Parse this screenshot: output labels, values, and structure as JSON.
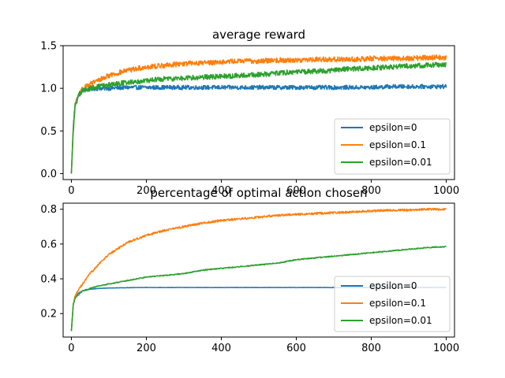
{
  "chart_data": [
    {
      "type": "line",
      "title": "average reward",
      "xlabel": "",
      "ylabel": "",
      "xlim": [
        -22,
        1022
      ],
      "ylim": [
        -0.07,
        1.5
      ],
      "xticks": [
        0,
        200,
        400,
        600,
        800,
        1000
      ],
      "xtick_labels": [
        "0",
        "200",
        "400",
        "600",
        "800",
        "1000"
      ],
      "yticks": [
        0.0,
        0.5,
        1.0,
        1.5
      ],
      "ytick_labels": [
        "0.0",
        "0.5",
        "1.0",
        "1.5"
      ],
      "grid": false,
      "legend_position": "lower right",
      "x": [
        0,
        5,
        10,
        20,
        30,
        50,
        75,
        100,
        150,
        200,
        250,
        300,
        350,
        400,
        450,
        500,
        550,
        600,
        650,
        700,
        750,
        800,
        850,
        900,
        950,
        1000
      ],
      "series": [
        {
          "name": "epsilon=0",
          "color": "#1f77b4",
          "noise": 0.025,
          "values": [
            0.0,
            0.55,
            0.82,
            0.93,
            0.97,
            0.99,
            1.0,
            1.0,
            1.01,
            1.01,
            1.01,
            1.01,
            1.01,
            1.01,
            1.01,
            1.01,
            1.01,
            1.01,
            1.01,
            1.01,
            1.01,
            1.01,
            1.02,
            1.02,
            1.02,
            1.02
          ]
        },
        {
          "name": "epsilon=0.1",
          "color": "#ff7f0e",
          "noise": 0.03,
          "values": [
            0.0,
            0.5,
            0.8,
            0.93,
            0.99,
            1.05,
            1.1,
            1.15,
            1.21,
            1.25,
            1.27,
            1.29,
            1.3,
            1.31,
            1.32,
            1.32,
            1.33,
            1.33,
            1.34,
            1.34,
            1.34,
            1.35,
            1.35,
            1.35,
            1.36,
            1.36
          ]
        },
        {
          "name": "epsilon=0.01",
          "color": "#2ca02c",
          "noise": 0.03,
          "values": [
            0.0,
            0.5,
            0.8,
            0.92,
            0.97,
            1.0,
            1.02,
            1.04,
            1.07,
            1.09,
            1.11,
            1.12,
            1.13,
            1.14,
            1.15,
            1.16,
            1.18,
            1.19,
            1.2,
            1.21,
            1.23,
            1.24,
            1.25,
            1.26,
            1.27,
            1.28
          ]
        }
      ]
    },
    {
      "type": "line",
      "title": "percentage of optimal action chosen",
      "xlabel": "",
      "ylabel": "",
      "xlim": [
        -22,
        1022
      ],
      "ylim": [
        0.065,
        0.835
      ],
      "xticks": [
        0,
        200,
        400,
        600,
        800,
        1000
      ],
      "xtick_labels": [
        "0",
        "200",
        "400",
        "600",
        "800",
        "1000"
      ],
      "yticks": [
        0.2,
        0.4,
        0.6,
        0.8
      ],
      "ytick_labels": [
        "0.2",
        "0.4",
        "0.6",
        "0.8"
      ],
      "grid": false,
      "legend_position": "lower right",
      "x": [
        0,
        5,
        10,
        20,
        30,
        50,
        75,
        100,
        150,
        200,
        250,
        300,
        350,
        400,
        450,
        500,
        550,
        600,
        650,
        700,
        750,
        800,
        850,
        900,
        950,
        1000
      ],
      "series": [
        {
          "name": "epsilon=0",
          "color": "#1f77b4",
          "noise": 0.001,
          "values": [
            0.1,
            0.25,
            0.3,
            0.32,
            0.33,
            0.34,
            0.345,
            0.347,
            0.349,
            0.35,
            0.35,
            0.35,
            0.35,
            0.35,
            0.35,
            0.35,
            0.35,
            0.35,
            0.35,
            0.35,
            0.35,
            0.35,
            0.35,
            0.35,
            0.35,
            0.35
          ]
        },
        {
          "name": "epsilon=0.1",
          "color": "#ff7f0e",
          "noise": 0.006,
          "values": [
            0.1,
            0.25,
            0.3,
            0.34,
            0.37,
            0.43,
            0.49,
            0.54,
            0.61,
            0.65,
            0.68,
            0.7,
            0.72,
            0.735,
            0.745,
            0.755,
            0.765,
            0.77,
            0.775,
            0.78,
            0.785,
            0.79,
            0.795,
            0.795,
            0.8,
            0.8
          ]
        },
        {
          "name": "epsilon=0.01",
          "color": "#2ca02c",
          "noise": 0.003,
          "values": [
            0.1,
            0.25,
            0.29,
            0.31,
            0.33,
            0.345,
            0.36,
            0.37,
            0.39,
            0.41,
            0.42,
            0.43,
            0.45,
            0.46,
            0.47,
            0.48,
            0.49,
            0.51,
            0.52,
            0.53,
            0.54,
            0.55,
            0.56,
            0.57,
            0.58,
            0.585
          ]
        }
      ]
    }
  ]
}
